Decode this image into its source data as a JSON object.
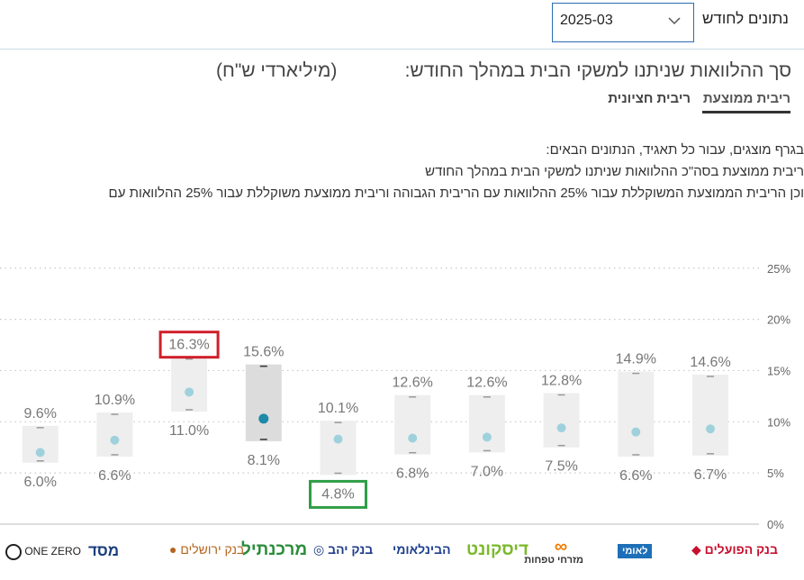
{
  "filter": {
    "label": "נתונים לחודש",
    "selected_month": "2025-03"
  },
  "header": {
    "title": "סך ההלוואות שניתנו למשקי הבית במהלך החודש:",
    "unit": "(מיליארדי ש\"ח)"
  },
  "tabs": [
    {
      "label": "ריבית ממוצעת",
      "active": true
    },
    {
      "label": "ריבית חציונית",
      "active": false
    }
  ],
  "description": [
    "בגרף מוצגים, עבור כל תאגיד, הנתונים הבאים:",
    "ריבית ממוצעת בסה\"כ ההלוואות שניתנו למשקי הבית במהלך החודש",
    "וכן הריבית הממוצעת המשוקללת עבור 25% ההלוואות עם הריבית הגבוהה וריבית ממוצעת משוקללת עבור 25% ההלוואות עם"
  ],
  "chart_data": {
    "type": "range",
    "y_ticks": [
      "0%",
      "5%",
      "10%",
      "15%",
      "20%",
      "25%"
    ],
    "ylim": [
      0,
      25
    ],
    "grid": true,
    "banks": [
      {
        "name": "בנק הפועלים",
        "high": 14.6,
        "low": 6.7,
        "avg": 9.3,
        "high_label": "14.6%",
        "low_label": "6.7%"
      },
      {
        "name": "לאומי",
        "high": 14.9,
        "low": 6.6,
        "avg": 9.0,
        "high_label": "14.9%",
        "low_label": "6.6%"
      },
      {
        "name": "מזרחי טפחות",
        "high": 12.8,
        "low": 7.5,
        "avg": 9.4,
        "high_label": "12.8%",
        "low_label": "7.5%"
      },
      {
        "name": "דיסקונט",
        "high": 12.6,
        "low": 7.0,
        "avg": 8.5,
        "high_label": "12.6%",
        "low_label": "7.0%"
      },
      {
        "name": "הבינלאומי",
        "high": 12.6,
        "low": 6.8,
        "avg": 8.4,
        "high_label": "12.6%",
        "low_label": "6.8%"
      },
      {
        "name": "בנק יהב",
        "high": 10.1,
        "low": 4.8,
        "avg": 8.3,
        "high_label": "10.1%",
        "low_label": "4.8%",
        "highlight_low": true
      },
      {
        "name": "מרכנתיל",
        "high": 15.6,
        "low": 8.1,
        "avg": 10.3,
        "high_label": "15.6%",
        "low_label": "8.1%",
        "selected": true
      },
      {
        "name": "בנק ירושלים",
        "high": 16.3,
        "low": 11.0,
        "avg": 12.9,
        "high_label": "16.3%",
        "low_label": "11.0%",
        "highlight_high": true
      },
      {
        "name": "מסד",
        "high": 10.9,
        "low": 6.6,
        "avg": 8.2,
        "high_label": "10.9%",
        "low_label": "6.6%"
      },
      {
        "name": "ONE ZERO",
        "high": 9.6,
        "low": 6.0,
        "avg": 7.0,
        "high_label": "9.6%",
        "low_label": "6.0%"
      }
    ]
  },
  "colors": {
    "bar": "#eeeeee",
    "bar_selected": "#dcdcdc",
    "dot": "#9fd1dd",
    "dot_selected": "#1c8aa8",
    "highlight_high": "#d0202a",
    "highlight_low": "#2f9e46",
    "grid": "#c8c8c8"
  }
}
